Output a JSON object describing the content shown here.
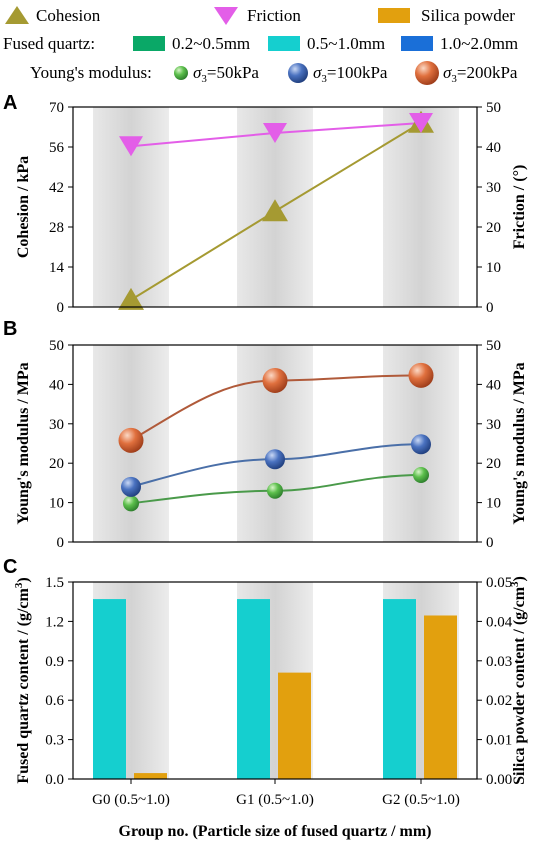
{
  "legend": {
    "row1": [
      {
        "label": "Cohesion",
        "marker": "triangle-up",
        "color": "#a59a32"
      },
      {
        "label": "Friction",
        "marker": "triangle-down",
        "color": "#e35ee8"
      },
      {
        "label": "Silica powder",
        "marker": "rect",
        "color": "#e2a00e"
      }
    ],
    "row2_title": "Fused quartz:",
    "row2": [
      {
        "label": "0.2~0.5mm",
        "color": "#0aa867"
      },
      {
        "label": "0.5~1.0mm",
        "color": "#15cfcf"
      },
      {
        "label": "1.0~2.0mm",
        "color": "#1a6fd8"
      }
    ],
    "row3_title": "Young's modulus:",
    "row3": [
      {
        "prefix": "σ",
        "sub": "3",
        "label": "=50kPa",
        "color": "#4aa64a"
      },
      {
        "prefix": "σ",
        "sub": "3",
        "label": "=100kPa",
        "color": "#3a63b0"
      },
      {
        "prefix": "σ",
        "sub": "3",
        "label": "=200kPa",
        "color": "#d9653a"
      }
    ]
  },
  "colors": {
    "band": "#dcdcdc",
    "cohesion": "#a59a32",
    "friction": "#e35ee8",
    "e50": "#4aa64a",
    "e50_line": "#4a9a4a",
    "e100": "#3a63b0",
    "e100_line": "#4a6fa8",
    "e200": "#d9653a",
    "e200_line": "#b05a3a",
    "quartz": "#15cfcf",
    "silica": "#e2a00e"
  },
  "chart_data": [
    {
      "panel": "A",
      "type": "line",
      "categories": [
        "G0 (0.5~1.0)",
        "G1 (0.5~1.0)",
        "G2 (0.5~1.0)"
      ],
      "ylabel": "Cohesion / kPa",
      "ylim": [
        0,
        70
      ],
      "yticks": [
        "0",
        "14",
        "28",
        "42",
        "56",
        "70"
      ],
      "y2label": "Friction / (°)",
      "y2lim": [
        0,
        50
      ],
      "y2ticks": [
        "0",
        "10",
        "20",
        "30",
        "40",
        "50"
      ],
      "series": [
        {
          "name": "Cohesion",
          "axis": "left",
          "values": [
            2.5,
            33.5,
            64.5
          ]
        },
        {
          "name": "Friction",
          "axis": "right",
          "values": [
            40.2,
            43.5,
            46.0
          ]
        }
      ]
    },
    {
      "panel": "B",
      "type": "line",
      "categories": [
        "G0 (0.5~1.0)",
        "G1 (0.5~1.0)",
        "G2 (0.5~1.0)"
      ],
      "ylabel": "Young's modulus / MPa",
      "ylim": [
        0,
        50
      ],
      "yticks": [
        "0",
        "10",
        "20",
        "30",
        "40",
        "50"
      ],
      "y2label": "Young's modulus / MPa",
      "series": [
        {
          "name": "σ3=50kPa",
          "values": [
            9.8,
            13.0,
            17.0
          ]
        },
        {
          "name": "σ3=100kPa",
          "values": [
            14.0,
            21.0,
            24.8
          ]
        },
        {
          "name": "σ3=200kPa",
          "values": [
            25.8,
            41.0,
            42.3
          ]
        }
      ]
    },
    {
      "panel": "C",
      "type": "bar",
      "categories": [
        "G0 (0.5~1.0)",
        "G1 (0.5~1.0)",
        "G2 (0.5~1.0)"
      ],
      "ylabel": "Fused quartz content / (g/cm³)",
      "ylim": [
        0,
        1.5
      ],
      "yticks": [
        "0.0",
        "0.3",
        "0.6",
        "0.9",
        "1.2",
        "1.5"
      ],
      "y2label": "Silica powder content / (g/cm³)",
      "y2lim": [
        0,
        0.05
      ],
      "y2ticks": [
        "0.00",
        "0.01",
        "0.02",
        "0.03",
        "0.04",
        "0.05"
      ],
      "series": [
        {
          "name": "Fused quartz 0.5~1.0mm",
          "axis": "left",
          "values": [
            1.37,
            1.37,
            1.37
          ]
        },
        {
          "name": "Silica powder",
          "axis": "right",
          "values": [
            0.0015,
            0.027,
            0.0415
          ]
        }
      ],
      "xlabel": "Group no. (Particle size of fused quartz / mm)"
    }
  ],
  "panel_labels": [
    "A",
    "B",
    "C"
  ]
}
